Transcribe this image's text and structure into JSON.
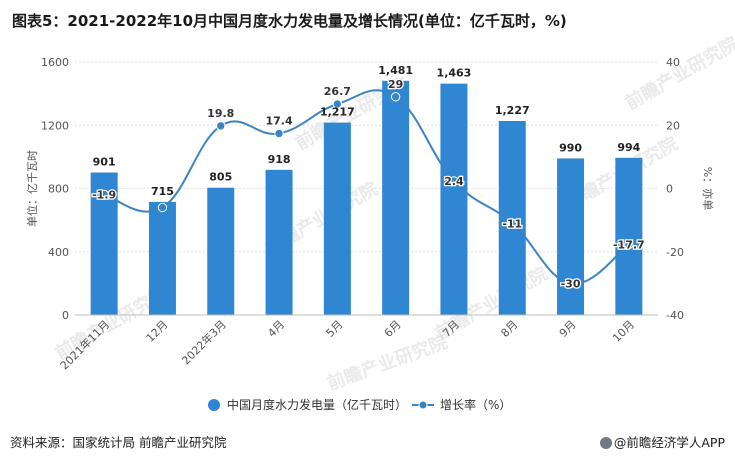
{
  "title": "图表5：2021-2022年10月中国月度水力发电量及增长情况(单位：亿千瓦时，%)",
  "source": "资料来源：国家统计局 前瞻产业研究院",
  "brand": "@前瞻经济学人APP",
  "watermark": "前瞻产业研究院",
  "colors": {
    "bar": "#2f86d3",
    "line": "#3a84c6",
    "grid": "#e3e3e3"
  },
  "chart_data": {
    "type": "bar",
    "categories": [
      "2021年11月",
      "12月",
      "2022年3月",
      "4月",
      "5月",
      "6月",
      "7月",
      "8月",
      "9月",
      "10月"
    ],
    "series": [
      {
        "name": "中国月度水力发电量（亿千瓦时）",
        "type": "bar",
        "axis": "left",
        "values": [
          901,
          715,
          805,
          918,
          1217,
          1481,
          1463,
          1227,
          990,
          994
        ],
        "labels": [
          "901",
          "715",
          "805",
          "918",
          "1,217",
          "1,481",
          "1,463",
          "1,227",
          "990",
          "994"
        ]
      },
      {
        "name": "增长率（%）",
        "type": "line",
        "axis": "right",
        "values": [
          -1.9,
          -6,
          19.8,
          17.4,
          26.7,
          29,
          2.4,
          -11,
          -30,
          -17.7
        ],
        "labels": [
          "-1.9",
          "",
          "19.8",
          "17.4",
          "26.7",
          "29",
          "2.4",
          "-11",
          "-30",
          "-17.7"
        ]
      }
    ],
    "ylabel_left": "单位：亿千瓦时",
    "ylabel_right": "%：亦单",
    "ylim_left": [
      0,
      1600
    ],
    "ylim_right": [
      -40,
      40
    ],
    "yticks_left": [
      "0",
      "400",
      "800",
      "1200",
      "1600"
    ],
    "yticks_right": [
      "-40",
      "-20",
      "0",
      "20",
      "40"
    ],
    "legend_position": "bottom",
    "grid": true
  }
}
